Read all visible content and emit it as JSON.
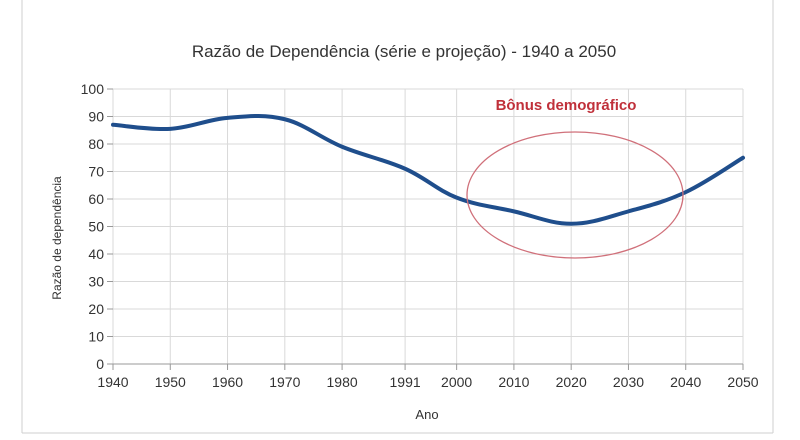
{
  "chart_data": {
    "type": "line",
    "title": "Razão de Dependência (série e projeção) - 1940 a 2050",
    "xlabel": "Ano",
    "ylabel": "Razão de dependência",
    "x_ticks": [
      "1940",
      "1950",
      "1960",
      "1970",
      "1980",
      "1991",
      "2000",
      "2010",
      "2020",
      "2030",
      "2040",
      "2050"
    ],
    "y_ticks": [
      "0",
      "10",
      "20",
      "30",
      "40",
      "50",
      "60",
      "70",
      "80",
      "90",
      "100"
    ],
    "ylim": [
      0,
      100
    ],
    "grid": true,
    "series": [
      {
        "x": [
          1940,
          1950,
          1960,
          1970,
          1980,
          1991,
          2000,
          2010,
          2020,
          2030,
          2040,
          2050
        ],
        "values": [
          87,
          85.5,
          89.5,
          89,
          79,
          71,
          60.5,
          55.5,
          51,
          55.5,
          62.5,
          75
        ],
        "color": "#1f4e8c"
      }
    ],
    "annotation": {
      "text": "Bônus demográfico",
      "color": "#c0303a",
      "shape": "ellipse"
    }
  }
}
